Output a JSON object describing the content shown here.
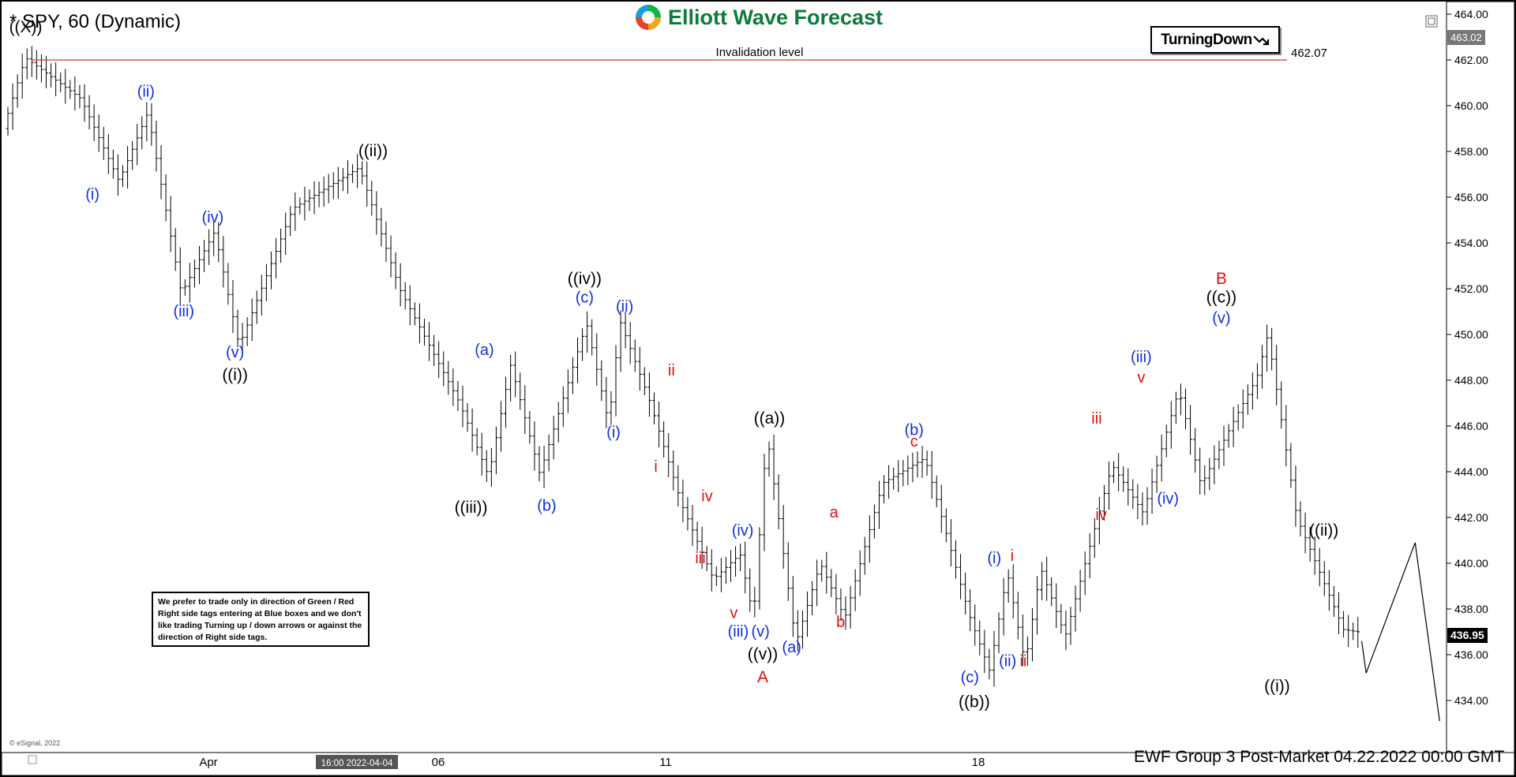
{
  "header": {
    "title": "* SPY, 60 (Dynamic)",
    "logo_text": "Elliott Wave Forecast",
    "turning_label": "TurningDown"
  },
  "invalidation": {
    "label": "Invalidation level",
    "value": "462.07"
  },
  "price_axis": {
    "ticks": [
      "464.00",
      "462.00",
      "460.00",
      "458.00",
      "456.00",
      "454.00",
      "452.00",
      "450.00",
      "448.00",
      "446.00",
      "444.00",
      "442.00",
      "440.00",
      "438.00",
      "436.00",
      "434.00"
    ],
    "current_price": "436.95",
    "top_badge": "463.02"
  },
  "time_axis": {
    "ticks": [
      "Apr",
      "06",
      "11",
      "18"
    ],
    "cursor_label": "16:00 2022-04-04"
  },
  "note": "We prefer to trade only in direction of Green / Red Right side tags entering at Blue boxes and we don't like trading Turning up / down arrows or against the direction of Right side tags.",
  "footer": {
    "text": "EWF Group 3 Post-Market 04.22.2022 00:00 GMT",
    "copyright": "© eSignal, 2022"
  },
  "colors": {
    "background": "#ffffff",
    "bars": "#000000",
    "blue_label": "#1030e0",
    "red_label": "#e01010",
    "invalidation_line": "#e83030",
    "logo_green": "#0e7a3c"
  },
  "chart_data": {
    "type": "ohlc",
    "title": "* SPY, 60 (Dynamic)",
    "ylim": [
      433,
      464.3
    ],
    "grid": false,
    "price_path_keypoints": [
      {
        "t": 0,
        "p": 459.0
      },
      {
        "t": 1,
        "p": 462.1
      },
      {
        "t": 3.5,
        "p": 460.3
      },
      {
        "t": 5.2,
        "p": 456.7
      },
      {
        "t": 6.5,
        "p": 459.7
      },
      {
        "t": 8,
        "p": 451.8
      },
      {
        "t": 9.5,
        "p": 454.5
      },
      {
        "t": 10.6,
        "p": 449.5
      },
      {
        "t": 13,
        "p": 455.5
      },
      {
        "t": 16,
        "p": 457.3
      },
      {
        "t": 17.8,
        "p": 452.0
      },
      {
        "t": 20.5,
        "p": 447.0
      },
      {
        "t": 21.8,
        "p": 443.8
      },
      {
        "t": 22.8,
        "p": 448.7
      },
      {
        "t": 24.1,
        "p": 443.9
      },
      {
        "t": 26.2,
        "p": 450.5
      },
      {
        "t": 27.2,
        "p": 446.1
      },
      {
        "t": 27.7,
        "p": 450.6
      },
      {
        "t": 29,
        "p": 447.2
      },
      {
        "t": 30.5,
        "p": 442.5
      },
      {
        "t": 31.9,
        "p": 439.3
      },
      {
        "t": 33.1,
        "p": 440.4
      },
      {
        "t": 33.7,
        "p": 437.6
      },
      {
        "t": 34.3,
        "p": 445.7
      },
      {
        "t": 35.6,
        "p": 436.5
      },
      {
        "t": 36.7,
        "p": 440.0
      },
      {
        "t": 37.8,
        "p": 437.6
      },
      {
        "t": 39.5,
        "p": 443.5
      },
      {
        "t": 41.4,
        "p": 444.6
      },
      {
        "t": 43.4,
        "p": 437.7
      },
      {
        "t": 44.3,
        "p": 435.3
      },
      {
        "t": 45.1,
        "p": 439.6
      },
      {
        "t": 45.9,
        "p": 435.6
      },
      {
        "t": 46.6,
        "p": 439.8
      },
      {
        "t": 47.7,
        "p": 436.8
      },
      {
        "t": 49.8,
        "p": 444.3
      },
      {
        "t": 51.2,
        "p": 442.2
      },
      {
        "t": 52.8,
        "p": 447.6
      },
      {
        "t": 53.8,
        "p": 443.4
      },
      {
        "t": 55.2,
        "p": 446.1
      },
      {
        "t": 56.3,
        "p": 448.1
      },
      {
        "t": 56.8,
        "p": 450.0
      },
      {
        "t": 58.1,
        "p": 442.0
      },
      {
        "t": 60.2,
        "p": 437.1
      },
      {
        "t": 60.8,
        "p": 437.0
      }
    ],
    "projection": [
      {
        "t": 60.8,
        "p": 436.6
      },
      {
        "t": 61.0,
        "p": 435.2
      },
      {
        "t": 63.2,
        "p": 440.9
      },
      {
        "t": 64.3,
        "p": 433.1
      }
    ],
    "wave_labels": [
      {
        "text": "((X))",
        "color": "black",
        "t": 0.8,
        "p": 463.2
      },
      {
        "text": "(i)",
        "color": "blue",
        "t": 3.8,
        "p": 455.9
      },
      {
        "text": "(ii)",
        "color": "blue",
        "t": 6.2,
        "p": 460.4
      },
      {
        "text": "(iii)",
        "color": "blue",
        "t": 7.9,
        "p": 450.8
      },
      {
        "text": "(iv)",
        "color": "blue",
        "t": 9.2,
        "p": 454.9
      },
      {
        "text": "(v)",
        "color": "blue",
        "t": 10.2,
        "p": 449.0
      },
      {
        "text": "((i))",
        "color": "black",
        "t": 10.2,
        "p": 448.0
      },
      {
        "text": "((ii))",
        "color": "black",
        "t": 16.4,
        "p": 457.8
      },
      {
        "text": "((iii))",
        "color": "black",
        "t": 20.8,
        "p": 442.2
      },
      {
        "text": "(a)",
        "color": "blue",
        "t": 21.4,
        "p": 449.1
      },
      {
        "text": "(b)",
        "color": "blue",
        "t": 24.2,
        "p": 442.3
      },
      {
        "text": "((iv))",
        "color": "black",
        "t": 25.9,
        "p": 452.2
      },
      {
        "text": "(c)",
        "color": "blue",
        "t": 25.9,
        "p": 451.4
      },
      {
        "text": "(ii)",
        "color": "blue",
        "t": 27.7,
        "p": 451.0
      },
      {
        "text": "(i)",
        "color": "blue",
        "t": 27.2,
        "p": 445.5
      },
      {
        "text": "ii",
        "color": "red",
        "t": 29.8,
        "p": 448.2
      },
      {
        "text": "i",
        "color": "red",
        "t": 29.1,
        "p": 444.0
      },
      {
        "text": "iv",
        "color": "red",
        "t": 31.4,
        "p": 442.7
      },
      {
        "text": "iii",
        "color": "red",
        "t": 31.1,
        "p": 440.0
      },
      {
        "text": "(iv)",
        "color": "blue",
        "t": 33.0,
        "p": 441.2
      },
      {
        "text": "v",
        "color": "red",
        "t": 32.6,
        "p": 437.6
      },
      {
        "text": "(iii)",
        "color": "blue",
        "t": 32.8,
        "p": 436.8
      },
      {
        "text": "(v)",
        "color": "blue",
        "t": 33.8,
        "p": 436.8
      },
      {
        "text": "((a))",
        "color": "black",
        "t": 34.2,
        "p": 446.1
      },
      {
        "text": "((v))",
        "color": "black",
        "t": 33.9,
        "p": 435.8
      },
      {
        "text": "(a)",
        "color": "blue",
        "t": 35.2,
        "p": 436.1
      },
      {
        "text": "A",
        "color": "red",
        "t": 33.9,
        "p": 434.8
      },
      {
        "text": "a",
        "color": "red",
        "t": 37.1,
        "p": 442.0
      },
      {
        "text": "b",
        "color": "red",
        "t": 37.4,
        "p": 437.2
      },
      {
        "text": "(b)",
        "color": "blue",
        "t": 40.7,
        "p": 445.6
      },
      {
        "text": "c",
        "color": "red",
        "t": 40.7,
        "p": 445.1
      },
      {
        "text": "(c)",
        "color": "blue",
        "t": 43.2,
        "p": 434.8
      },
      {
        "text": "((b))",
        "color": "black",
        "t": 43.4,
        "p": 433.7
      },
      {
        "text": "(i)",
        "color": "blue",
        "t": 44.3,
        "p": 440.0
      },
      {
        "text": "i",
        "color": "red",
        "t": 45.1,
        "p": 440.1
      },
      {
        "text": "(ii)",
        "color": "blue",
        "t": 44.9,
        "p": 435.5
      },
      {
        "text": "ii",
        "color": "red",
        "t": 45.6,
        "p": 435.5
      },
      {
        "text": "iii",
        "color": "red",
        "t": 48.9,
        "p": 446.1
      },
      {
        "text": "iv",
        "color": "red",
        "t": 49.1,
        "p": 441.9
      },
      {
        "text": "(iii)",
        "color": "blue",
        "t": 50.9,
        "p": 448.8
      },
      {
        "text": "v",
        "color": "red",
        "t": 50.9,
        "p": 447.9
      },
      {
        "text": "(iv)",
        "color": "blue",
        "t": 52.1,
        "p": 442.6
      },
      {
        "text": "B",
        "color": "red",
        "t": 54.5,
        "p": 452.2
      },
      {
        "text": "((c))",
        "color": "black",
        "t": 54.5,
        "p": 451.4
      },
      {
        "text": "(v)",
        "color": "blue",
        "t": 54.5,
        "p": 450.5
      },
      {
        "text": "((ii))",
        "color": "black",
        "t": 59.1,
        "p": 441.2
      },
      {
        "text": "((i))",
        "color": "black",
        "t": 57.0,
        "p": 434.4
      }
    ]
  }
}
